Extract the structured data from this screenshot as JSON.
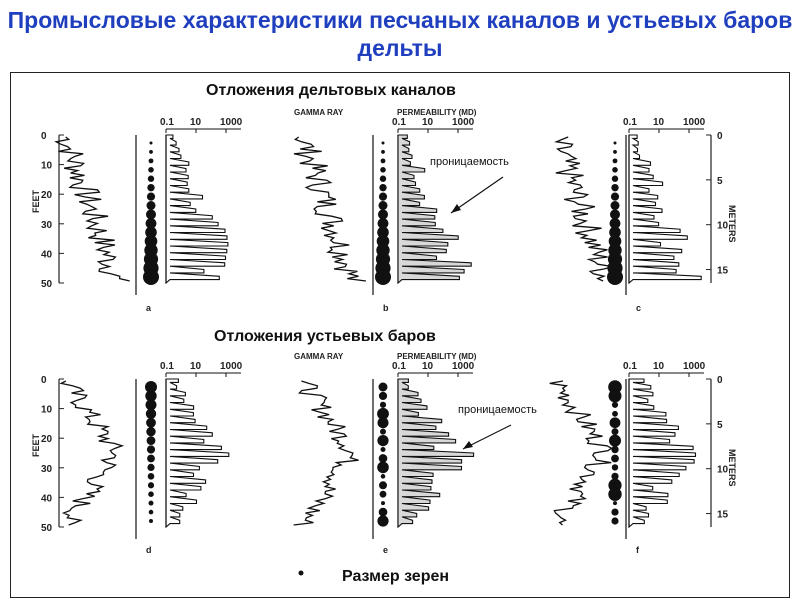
{
  "title": "Промысловые характеристики песчаных каналов и устьевых баров дельты",
  "section_top": "Отложения дельтовых каналов",
  "section_bottom": "Отложения устьевых баров",
  "legend_grain": "Размер зерен",
  "annotation_permeability": "проницаемость",
  "headers": {
    "gamma": "GAMMA RAY",
    "perm": "PERMEABILITY (MD)"
  },
  "perm_scale": [
    "0.1",
    "10",
    "1000"
  ],
  "feet_label": "FEET",
  "meters_label": "METERS",
  "feet_ticks": [
    "0",
    "10",
    "20",
    "30",
    "40",
    "50"
  ],
  "meter_ticks": [
    "0",
    "5",
    "10",
    "15"
  ],
  "panels": [
    "a",
    "b",
    "c",
    "d",
    "e",
    "f"
  ]
}
